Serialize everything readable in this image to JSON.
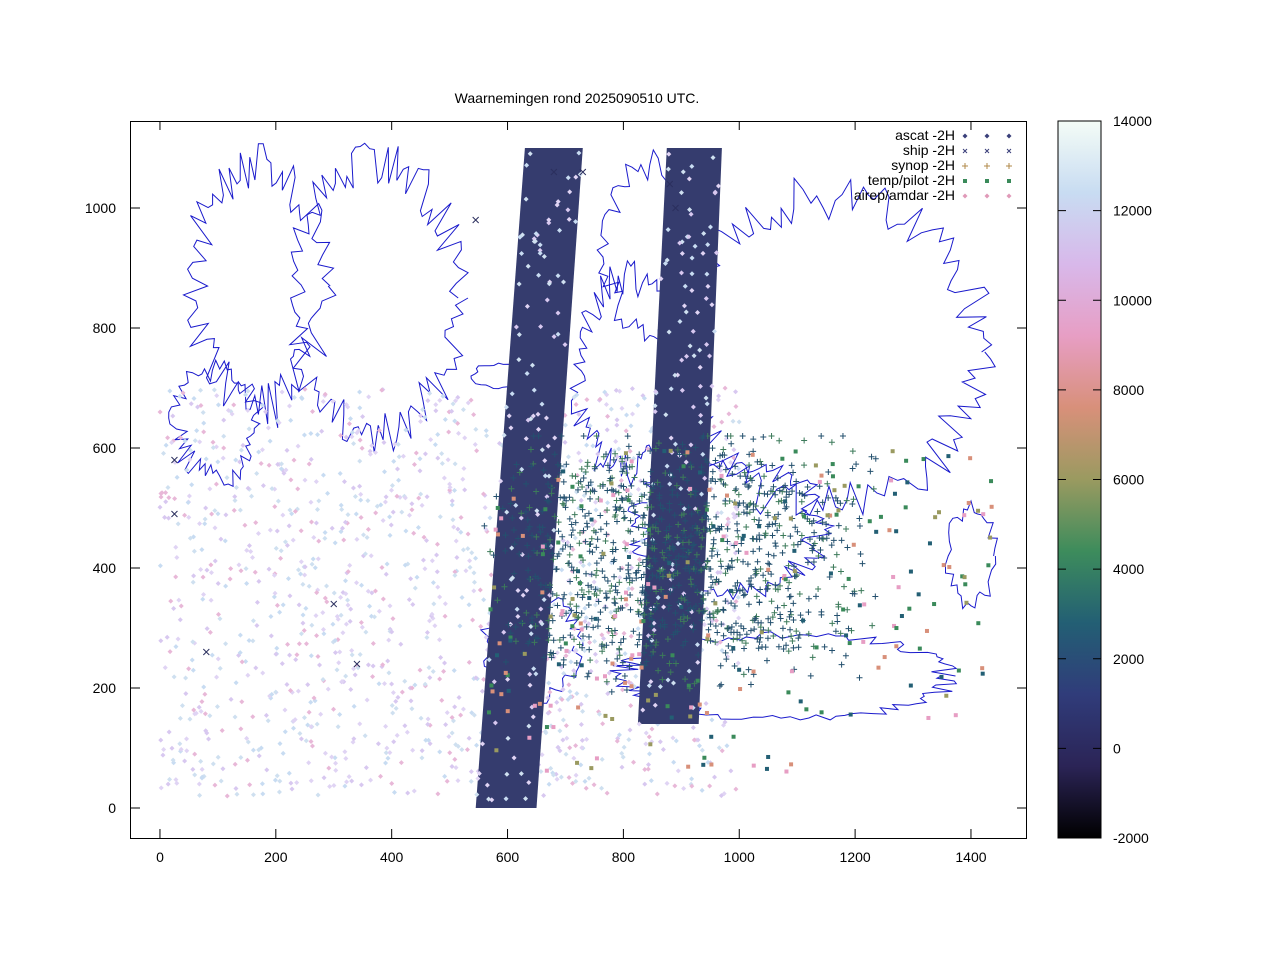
{
  "title": "Waarnemingen rond 2025090510 UTC.",
  "legend": [
    {
      "label": "ascat -2H",
      "marker": "diamond",
      "color": "#3a3f7a"
    },
    {
      "label": "ship -2H",
      "marker": "cross",
      "color": "#3a3f7a"
    },
    {
      "label": "synop -2H",
      "marker": "plus",
      "color": "#b08a4a"
    },
    {
      "label": "temp/pilot -2H",
      "marker": "square",
      "color": "#3a8a5a"
    },
    {
      "label": "airep/amdar -2H",
      "marker": "diamond-pink",
      "color": "#e09ab8"
    }
  ],
  "chart_data": {
    "type": "scatter",
    "title": "Waarnemingen rond 2025090510 UTC.",
    "xlabel": "",
    "ylabel": "",
    "xlim": [
      -50,
      1495
    ],
    "ylim": [
      -50,
      1145
    ],
    "x_ticks": [
      0,
      200,
      400,
      600,
      800,
      1000,
      1200,
      1400
    ],
    "y_ticks": [
      0,
      200,
      400,
      600,
      800,
      1000
    ],
    "grid": false,
    "legend_position": "top-right",
    "colorbar": {
      "min": -2000,
      "max": 14000,
      "ticks": [
        -2000,
        0,
        2000,
        4000,
        6000,
        8000,
        10000,
        12000,
        14000
      ],
      "stops": [
        "#000000",
        "#2b2456",
        "#303c7a",
        "#235f74",
        "#3d8c5c",
        "#9a9a60",
        "#d8907a",
        "#e79ec4",
        "#d8b8ea",
        "#c8dcf2",
        "#f4fcf6"
      ]
    },
    "series": [
      {
        "name": "ascat -2H",
        "swaths": [
          {
            "x_bottom": [
              545,
              650
            ],
            "x_top": [
              630,
              730
            ],
            "y": [
              0,
              1100
            ]
          },
          {
            "x_bottom": [
              825,
              930
            ],
            "x_top": [
              875,
              970
            ],
            "y": [
              140,
              1100
            ]
          }
        ]
      },
      {
        "name": "ship -2H",
        "points": [
          [
            300,
            340
          ],
          [
            80,
            260
          ],
          [
            340,
            240
          ],
          [
            25,
            580
          ],
          [
            25,
            490
          ],
          [
            680,
            1060
          ],
          [
            730,
            1060
          ],
          [
            880,
            1040
          ],
          [
            890,
            1000
          ],
          [
            545,
            980
          ]
        ]
      },
      {
        "name": "synop -2H",
        "region": {
          "x": [
            560,
            1450
          ],
          "y": [
            20,
            620
          ]
        }
      },
      {
        "name": "temp/pilot -2H",
        "region": {
          "x": [
            560,
            1440
          ],
          "y": [
            60,
            600
          ]
        }
      },
      {
        "name": "airep/amdar -2H",
        "region": {
          "x": [
            0,
            1000
          ],
          "y": [
            20,
            700
          ]
        }
      }
    ]
  }
}
